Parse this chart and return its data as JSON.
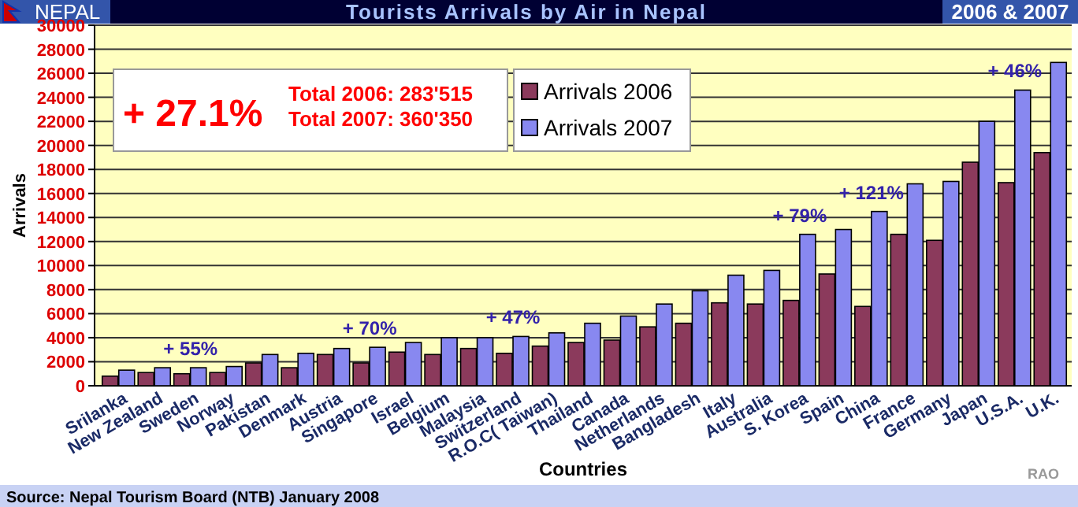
{
  "chart_data": {
    "type": "bar",
    "title": "Tourists Arrivals by Air in Nepal",
    "subtitle": "2006 & 2007",
    "xlabel": "Countries",
    "ylabel": "Arrivals",
    "categories": [
      "Srilanka",
      "New Zealand",
      "Sweden",
      "Norway",
      "Pakistan",
      "Denmark",
      "Austria",
      "Singapore",
      "Israel",
      "Belgium",
      "Malaysia",
      "Switzerland",
      "R.O.C( Taiwan)",
      "Thailand",
      "Canada",
      "Netherlands",
      "Bangladesh",
      "Italy",
      "Australia",
      "S. Korea",
      "Spain",
      "China",
      "France",
      "Germany",
      "Japan",
      "U.S.A.",
      "U.K."
    ],
    "series": [
      {
        "name": "Arrivals 2006",
        "color": "#8b3a5c",
        "values": [
          800,
          1100,
          1000,
          1100,
          1900,
          1500,
          2600,
          1900,
          2800,
          2600,
          3100,
          2700,
          3300,
          3600,
          3800,
          4900,
          5200,
          6900,
          6800,
          7100,
          9300,
          6600,
          12600,
          12100,
          18600,
          16900,
          19400
        ]
      },
      {
        "name": "Arrivals 2007",
        "color": "#8888f0",
        "values": [
          1300,
          1500,
          1500,
          1600,
          2600,
          2700,
          3100,
          3200,
          3600,
          4000,
          4000,
          4100,
          4400,
          5200,
          5800,
          6800,
          7900,
          9200,
          9600,
          12600,
          13000,
          14500,
          16800,
          17000,
          22000,
          24600,
          26900
        ]
      }
    ],
    "ylim": [
      0,
      30000
    ],
    "yticks": [
      0,
      2000,
      4000,
      6000,
      8000,
      10000,
      12000,
      14000,
      16000,
      18000,
      20000,
      22000,
      24000,
      26000,
      28000,
      30000
    ],
    "grid": "y",
    "legend": "top",
    "annotations": [
      "NEPAL",
      "+ 27.1%",
      "Total 2006: 283'515",
      "Total 2007: 360'350",
      "Source: Nepal Tourism Board (NTB) January 2008",
      "RAO",
      {
        "text": "+ 55%",
        "x": "Sweden",
        "y": 1500
      },
      {
        "text": "+ 70%",
        "x": "Singapore",
        "y": 3200
      },
      {
        "text": "+ 47%",
        "x": "Switzerland",
        "y": 4100
      },
      {
        "text": "+ 79%",
        "x": "S. Korea",
        "y": 12600
      },
      {
        "text": "+ 121%",
        "x": "China",
        "y": 14500
      },
      {
        "text": "+ 46%",
        "x": "U.S.A.",
        "y": 24600
      }
    ]
  }
}
